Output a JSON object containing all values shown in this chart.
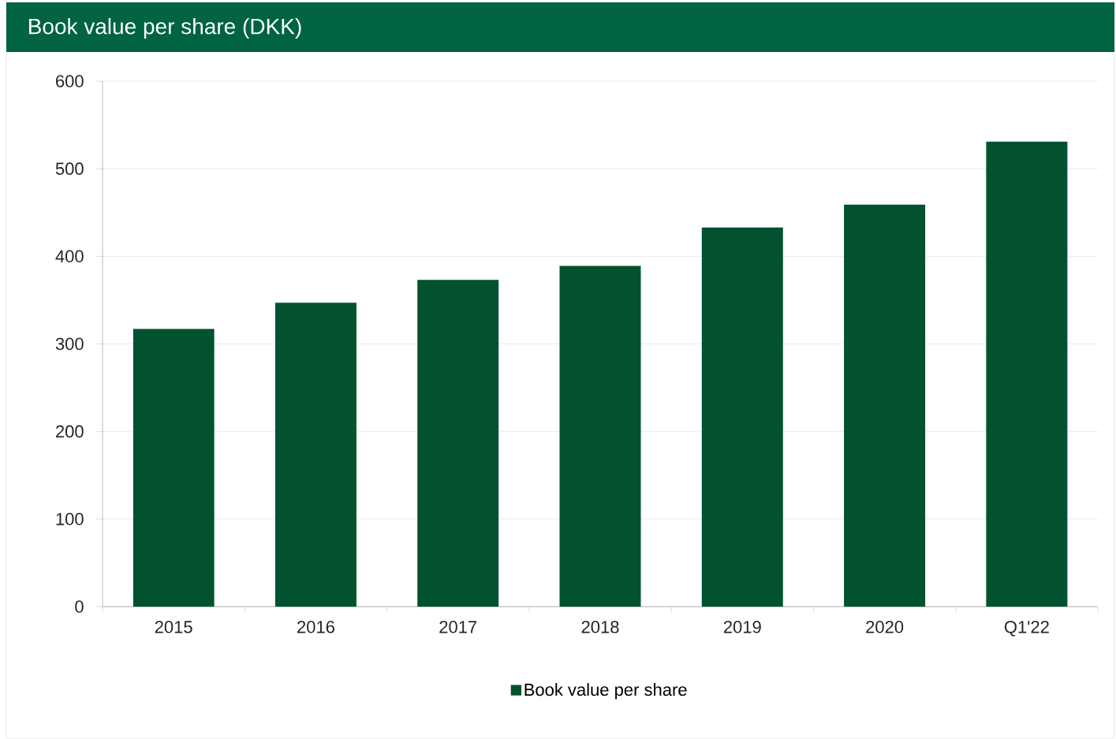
{
  "chart_data": {
    "type": "bar",
    "title": "Book value per share (DKK)",
    "categories": [
      "2015",
      "2016",
      "2017",
      "2018",
      "2019",
      "2020",
      "Q1'22"
    ],
    "series": [
      {
        "name": "Book value per share",
        "color": "#02522f",
        "values": [
          317,
          347,
          373,
          389,
          433,
          459,
          531
        ]
      }
    ],
    "ylim": [
      0,
      600
    ],
    "yticks": [
      0,
      100,
      200,
      300,
      400,
      500,
      600
    ],
    "grid": "y",
    "legend": "bottom"
  }
}
